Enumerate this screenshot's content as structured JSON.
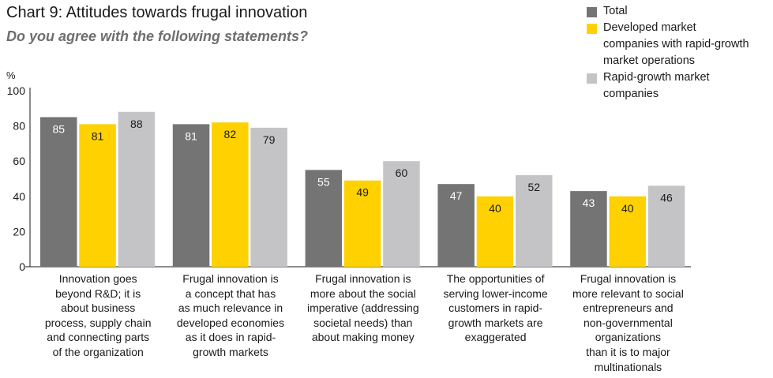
{
  "chart_data": {
    "type": "bar",
    "title": "Chart 9: Attitudes towards frugal innovation",
    "subtitle": "Do you agree with the following statements?",
    "ylabel": "%",
    "ylim": [
      0,
      100
    ],
    "yticks": [
      0,
      20,
      40,
      60,
      80,
      100
    ],
    "grid": false,
    "legend_position": "top-right",
    "categories": [
      "Innovation goes beyond R&D; it is about business process, supply chain and connecting parts of the organization",
      "Frugal innovation is a concept that has as much relevance in developed economies as it does in rapid-growth markets",
      "Frugal innovation is more about the social imperative (addressing societal needs) than about making money",
      "The opportunities of serving lower-income customers in rapid-growth markets are exaggerated",
      "Frugal innovation is more relevant to social entrepreneurs and non-governmental organizations than it is to major multinationals"
    ],
    "category_lines": [
      [
        "Innovation goes",
        "beyond R&D; it is",
        "about business",
        "process, supply chain",
        "and connecting parts",
        "of the organization"
      ],
      [
        "Frugal innovation is",
        "a concept that has",
        "as much relevance in",
        "developed economies",
        "as it does in rapid-",
        "growth markets"
      ],
      [
        "Frugal innovation is",
        "more about the social",
        "imperative (addressing",
        "societal needs) than",
        "about making money"
      ],
      [
        "The opportunities of",
        "serving lower-income",
        "customers in rapid-",
        "growth markets are",
        "exaggerated"
      ],
      [
        "Frugal innovation is",
        "more relevant to social",
        "entrepreneurs and",
        "non-governmental",
        "organizations",
        "than it is to major",
        "multinationals"
      ]
    ],
    "series": [
      {
        "name": "Total",
        "color": "#747474",
        "label_color": "#ffffff",
        "values": [
          85,
          81,
          55,
          47,
          43
        ]
      },
      {
        "name": "Developed market companies with rapid-growth market operations",
        "color": "#ffd100",
        "label_color": "#1a1a1a",
        "values": [
          81,
          82,
          49,
          40,
          40
        ]
      },
      {
        "name": "Rapid-growth market companies",
        "color": "#c4c4c6",
        "label_color": "#1a1a1a",
        "values": [
          88,
          79,
          60,
          52,
          46
        ]
      }
    ]
  },
  "legend": [
    {
      "lines": [
        "Total"
      ],
      "color": "#747474"
    },
    {
      "lines": [
        "Developed market",
        "companies with rapid-growth",
        "market operations"
      ],
      "color": "#ffd100"
    },
    {
      "lines": [
        "Rapid-growth market",
        "companies"
      ],
      "color": "#c4c4c6"
    }
  ]
}
